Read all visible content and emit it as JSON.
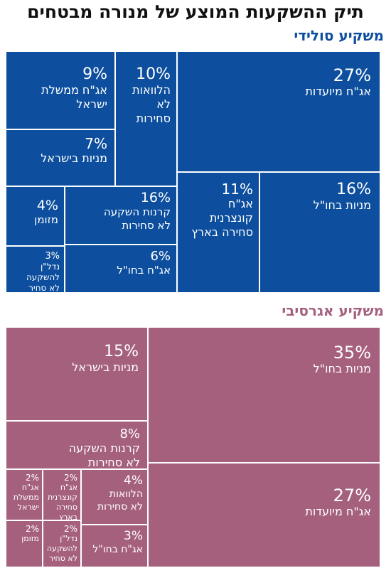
{
  "title": "תיק ההשקעות המוצע של מנורה מבטחים",
  "chart_data": [
    {
      "type": "treemap",
      "title": "משקיע סולידי",
      "color": "#0d4f9e",
      "items": [
        {
          "value": 27,
          "label": "אג\"ח מיועדות"
        },
        {
          "value": 16,
          "label": "מניות בחו\"ל"
        },
        {
          "value": 11,
          "label": "אג\"ח\nקונצרנית\nסחירה בארץ"
        },
        {
          "value": 10,
          "label": "הלוואות\nלא\nסחירות"
        },
        {
          "value": 9,
          "label": "אג\"ח ממשלת\nישראל"
        },
        {
          "value": 7,
          "label": "מניות בישראל"
        },
        {
          "value": 16,
          "label": "קרנות השקעה\nלא סחירות"
        },
        {
          "value": 6,
          "label": "אג\"ח בחו\"ל"
        },
        {
          "value": 4,
          "label": "מזומן"
        },
        {
          "value": 3,
          "label": "נדל\"ן\nלהשקעה\nלא סחיר"
        }
      ]
    },
    {
      "type": "treemap",
      "title": "משקיע אגרסיבי",
      "color": "#a5607e",
      "items": [
        {
          "value": 35,
          "label": "מניות בחו\"ל"
        },
        {
          "value": 27,
          "label": "אג\"ח מיועדות"
        },
        {
          "value": 15,
          "label": "מניות בישראל"
        },
        {
          "value": 8,
          "label": "קרנות השקעה\nלא סחירות"
        },
        {
          "value": 4,
          "label": "הלוואות\nלא סחירות"
        },
        {
          "value": 3,
          "label": "אג\"ח בחו\"ל"
        },
        {
          "value": 2,
          "label": "אג\"ח\nקונצרנית\nסחירה\nבארץ"
        },
        {
          "value": 2,
          "label": "אג\"ח\nממשלת\nישראל"
        },
        {
          "value": 2,
          "label": "נדל\"ן\nלהשקעה\nלא סחיר"
        },
        {
          "value": 2,
          "label": "מזומן"
        }
      ]
    }
  ]
}
